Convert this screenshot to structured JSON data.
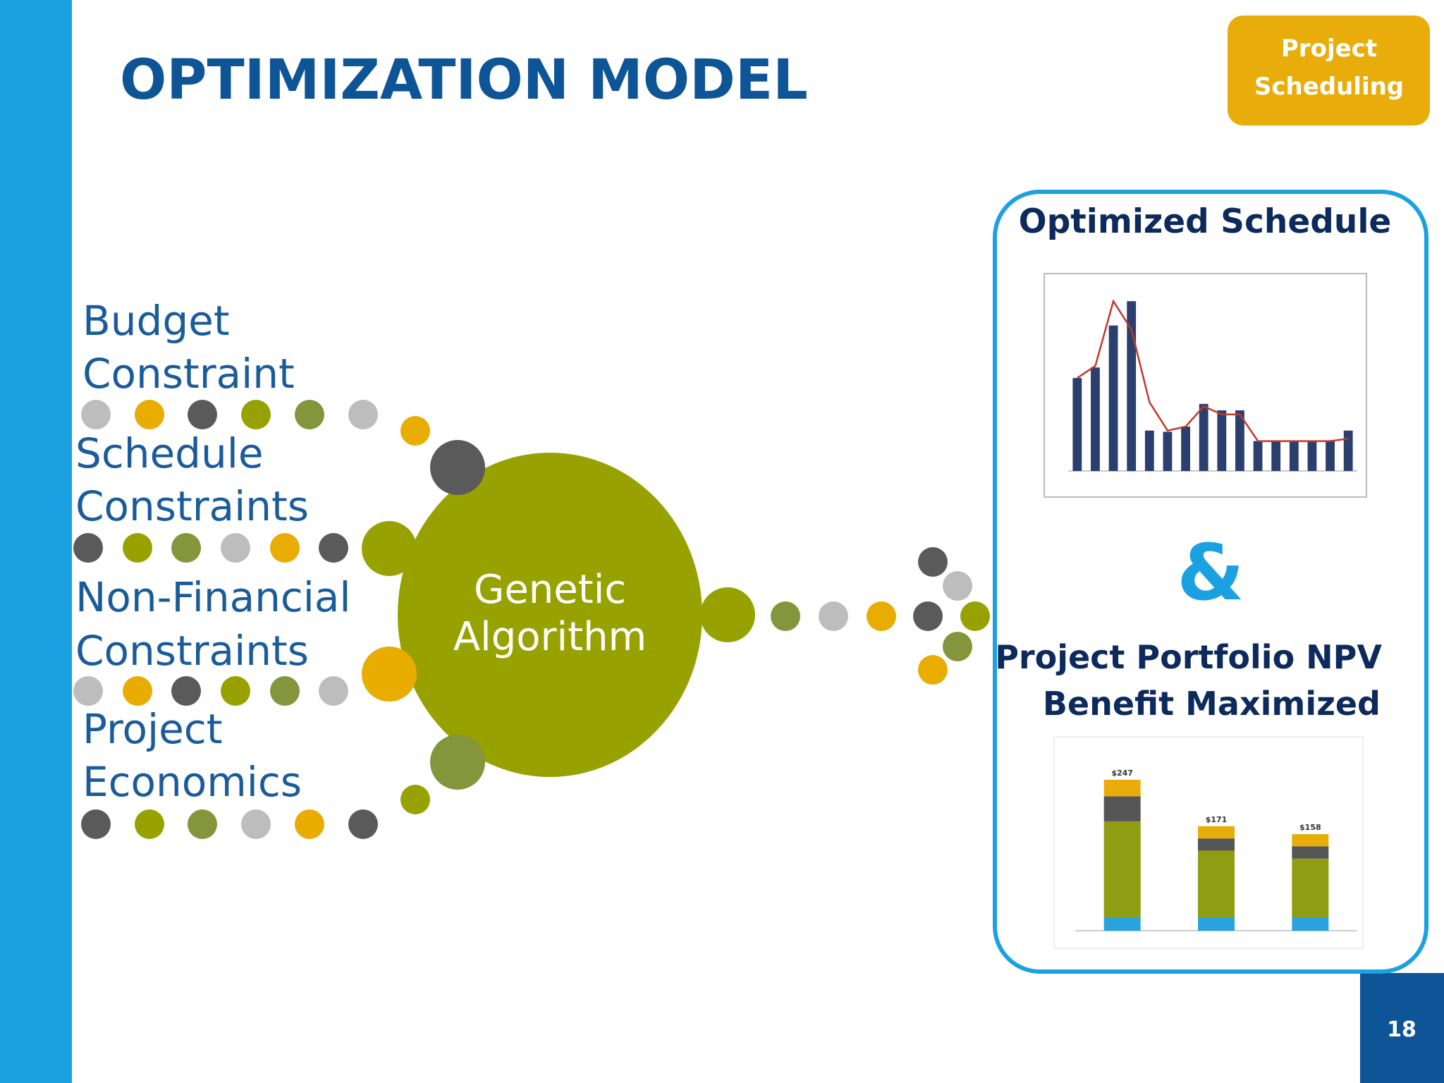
{
  "header": {
    "title": "OPTIMIZATION MODEL",
    "badge": [
      "Project",
      "Scheduling"
    ]
  },
  "inputs": [
    [
      "Budget",
      "Constraint"
    ],
    [
      "Schedule",
      "Constraints"
    ],
    [
      "Non-Financial",
      "Constraints"
    ],
    [
      "Project",
      "Economics"
    ]
  ],
  "engine": [
    "Genetic",
    "Algorithm"
  ],
  "output": {
    "schedule_title": "Optimized Schedule",
    "joiner": "&",
    "npv_title": [
      "Project Portfolio NPV",
      "Benefit Maximized"
    ]
  },
  "schedule_chart": {
    "type": "bar",
    "color": "#2a3f6e",
    "line_color": "#c0392b",
    "ylim": [
      0,
      45
    ],
    "values": [
      23,
      25.6,
      36,
      42,
      10,
      9.7,
      11,
      16.6,
      15,
      15,
      7.4,
      7.4,
      7.4,
      7.4,
      7.4,
      10
    ],
    "budget": [
      23,
      26,
      42,
      35,
      17,
      10,
      11,
      16,
      14,
      14,
      7.4,
      7.4,
      7.4,
      7.4,
      7.4,
      8
    ]
  },
  "npv_chart": {
    "type": "stacked-bar",
    "ylim": [
      0,
      300
    ],
    "series": [
      {
        "color": "#29a3dd",
        "values": [
          22,
          22,
          22
        ]
      },
      {
        "color": "#8f9d12",
        "values": [
          157,
          109,
          96
        ]
      },
      {
        "color": "#555555",
        "values": [
          41,
          20,
          20
        ]
      },
      {
        "color": "#e8ad0a",
        "values": [
          27,
          20,
          20
        ]
      }
    ],
    "totals": [
      247,
      171,
      158
    ],
    "total_labels": [
      "$247",
      "$171",
      "$158"
    ]
  },
  "page_number": "18"
}
